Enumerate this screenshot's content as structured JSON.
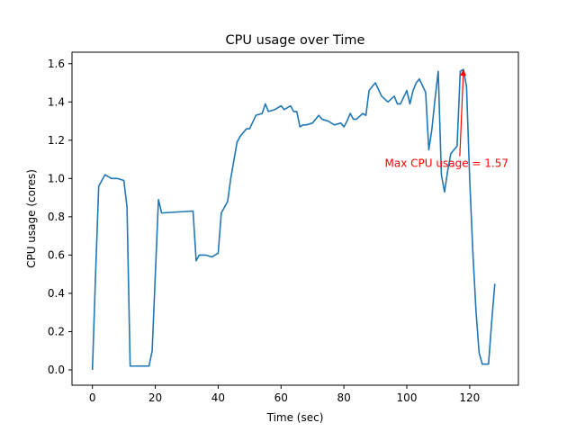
{
  "chart_data": {
    "type": "line",
    "title": "CPU usage over Time",
    "xlabel": "Time (sec)",
    "ylabel": "CPU usage (cores)",
    "xlim": [
      -6.5,
      135.5
    ],
    "ylim": [
      -0.08,
      1.66
    ],
    "xticks": [
      0,
      20,
      40,
      60,
      80,
      100,
      120
    ],
    "yticks": [
      0.0,
      0.2,
      0.4,
      0.6,
      0.8,
      1.0,
      1.2,
      1.4,
      1.6
    ],
    "xtick_labels": [
      "0",
      "20",
      "40",
      "60",
      "80",
      "100",
      "120"
    ],
    "ytick_labels": [
      "0.0",
      "0.2",
      "0.4",
      "0.6",
      "0.8",
      "1.0",
      "1.2",
      "1.4",
      "1.6"
    ],
    "grid": false,
    "line_color": "#1f77b4",
    "series": [
      {
        "x": [
          0,
          1,
          2,
          4,
          6,
          8,
          10,
          11,
          12,
          13,
          15,
          18,
          19,
          21,
          22,
          32,
          33,
          34,
          36,
          38,
          40,
          41,
          43,
          44,
          46,
          47,
          49,
          50,
          52,
          54,
          55,
          56,
          58,
          60,
          61,
          63,
          64,
          65,
          66,
          67,
          68,
          70,
          72,
          73,
          75,
          77,
          79,
          80,
          81,
          82,
          83,
          84,
          86,
          87,
          88,
          90,
          92,
          94,
          96,
          97,
          98,
          100,
          101,
          102,
          103,
          104,
          106,
          107,
          108,
          109,
          110,
          111,
          112,
          113,
          114,
          116,
          117,
          118,
          119,
          120,
          121,
          122,
          123,
          124,
          125,
          126,
          127,
          128
        ],
        "y": [
          0.0,
          0.5,
          0.96,
          1.02,
          1.0,
          1.0,
          0.99,
          0.85,
          0.02,
          0.02,
          0.02,
          0.02,
          0.1,
          0.89,
          0.82,
          0.83,
          0.57,
          0.6,
          0.6,
          0.59,
          0.61,
          0.82,
          0.88,
          1.0,
          1.19,
          1.22,
          1.26,
          1.26,
          1.33,
          1.34,
          1.39,
          1.35,
          1.36,
          1.38,
          1.36,
          1.38,
          1.35,
          1.35,
          1.27,
          1.28,
          1.28,
          1.29,
          1.33,
          1.31,
          1.3,
          1.28,
          1.29,
          1.27,
          1.3,
          1.34,
          1.31,
          1.31,
          1.34,
          1.33,
          1.46,
          1.5,
          1.43,
          1.4,
          1.43,
          1.39,
          1.39,
          1.46,
          1.39,
          1.46,
          1.5,
          1.52,
          1.45,
          1.15,
          1.26,
          1.42,
          1.56,
          1.02,
          0.93,
          1.04,
          1.13,
          1.17,
          1.56,
          1.57,
          1.48,
          1.0,
          0.62,
          0.31,
          0.09,
          0.03,
          0.03,
          0.03,
          0.25,
          0.45
        ]
      }
    ],
    "annotation": {
      "text": "Max CPU usage = 1.57",
      "point": [
        118,
        1.57
      ],
      "text_pos": [
        93,
        1.06
      ],
      "color": "#ff0000"
    }
  }
}
